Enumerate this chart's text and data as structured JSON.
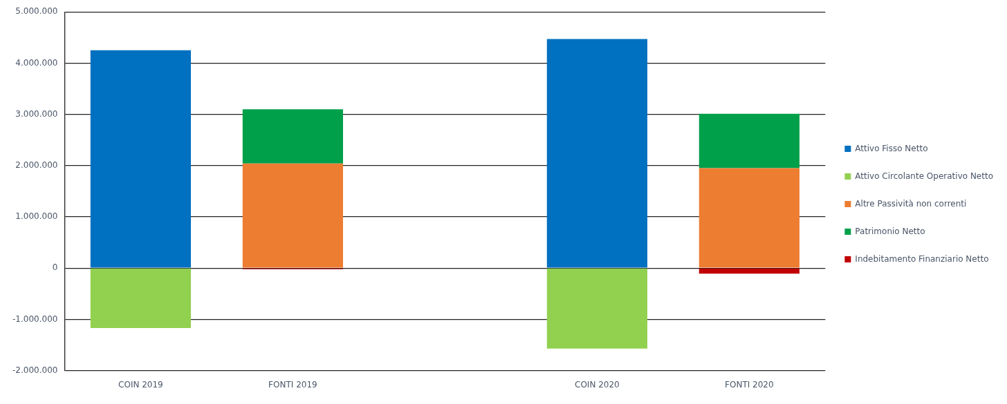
{
  "chart_data": {
    "type": "bar",
    "stacked": true,
    "categories": [
      "COIN 2019",
      "FONTI 2019",
      null,
      "COIN 2020",
      "FONTI 2020"
    ],
    "series": [
      {
        "name": "Attivo Fisso Netto",
        "color": "#0070c0",
        "values": [
          4250000,
          null,
          null,
          4470000,
          null
        ]
      },
      {
        "name": "Attivo Circolante Operativo Netto",
        "color": "#92d050",
        "values": [
          -1170000,
          null,
          null,
          -1570000,
          null
        ]
      },
      {
        "name": "Altre Passività non correnti",
        "color": "#ed7d31",
        "values": [
          null,
          2040000,
          null,
          null,
          1950000
        ]
      },
      {
        "name": "Patrimonio Netto",
        "color": "#00a04b",
        "values": [
          null,
          1060000,
          null,
          null,
          1060000
        ]
      },
      {
        "name": "Indebitamento Finanziario Netto",
        "color": "#c00000",
        "values": [
          null,
          -20000,
          null,
          null,
          -110000
        ]
      }
    ],
    "ylim": [
      -2000000,
      5000000
    ],
    "yticks": [
      {
        "value": -2000000,
        "label": "-2.000.000"
      },
      {
        "value": -1000000,
        "label": "-1.000.000"
      },
      {
        "value": 0,
        "label": "0"
      },
      {
        "value": 1000000,
        "label": "1.000.000"
      },
      {
        "value": 2000000,
        "label": "2.000.000"
      },
      {
        "value": 3000000,
        "label": "3.000.000"
      },
      {
        "value": 4000000,
        "label": "4.000.000"
      },
      {
        "value": 5000000,
        "label": "5.000.000"
      }
    ],
    "grid": "y",
    "legend": "right"
  }
}
